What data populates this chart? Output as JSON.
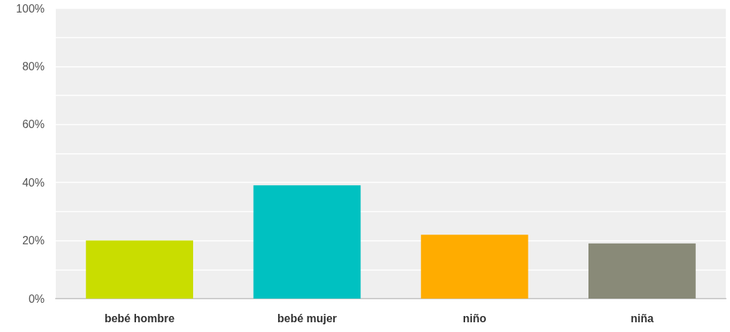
{
  "chart_data": {
    "type": "bar",
    "categories": [
      "bebé hombre",
      "bebé mujer",
      "niño",
      "niña"
    ],
    "values": [
      20,
      39,
      22,
      19
    ],
    "colors": [
      "#c9dd00",
      "#00c1c1",
      "#ffac00",
      "#898a78"
    ],
    "ylim": [
      0,
      100
    ],
    "yticks": [
      {
        "value": 0,
        "label": "0%"
      },
      {
        "value": 10,
        "label": null
      },
      {
        "value": 20,
        "label": "20%"
      },
      {
        "value": 30,
        "label": null
      },
      {
        "value": 40,
        "label": "40%"
      },
      {
        "value": 50,
        "label": null
      },
      {
        "value": 60,
        "label": "60%"
      },
      {
        "value": 70,
        "label": null
      },
      {
        "value": 80,
        "label": "80%"
      },
      {
        "value": 90,
        "label": null
      },
      {
        "value": 100,
        "label": "100%"
      }
    ],
    "grid": "y"
  }
}
